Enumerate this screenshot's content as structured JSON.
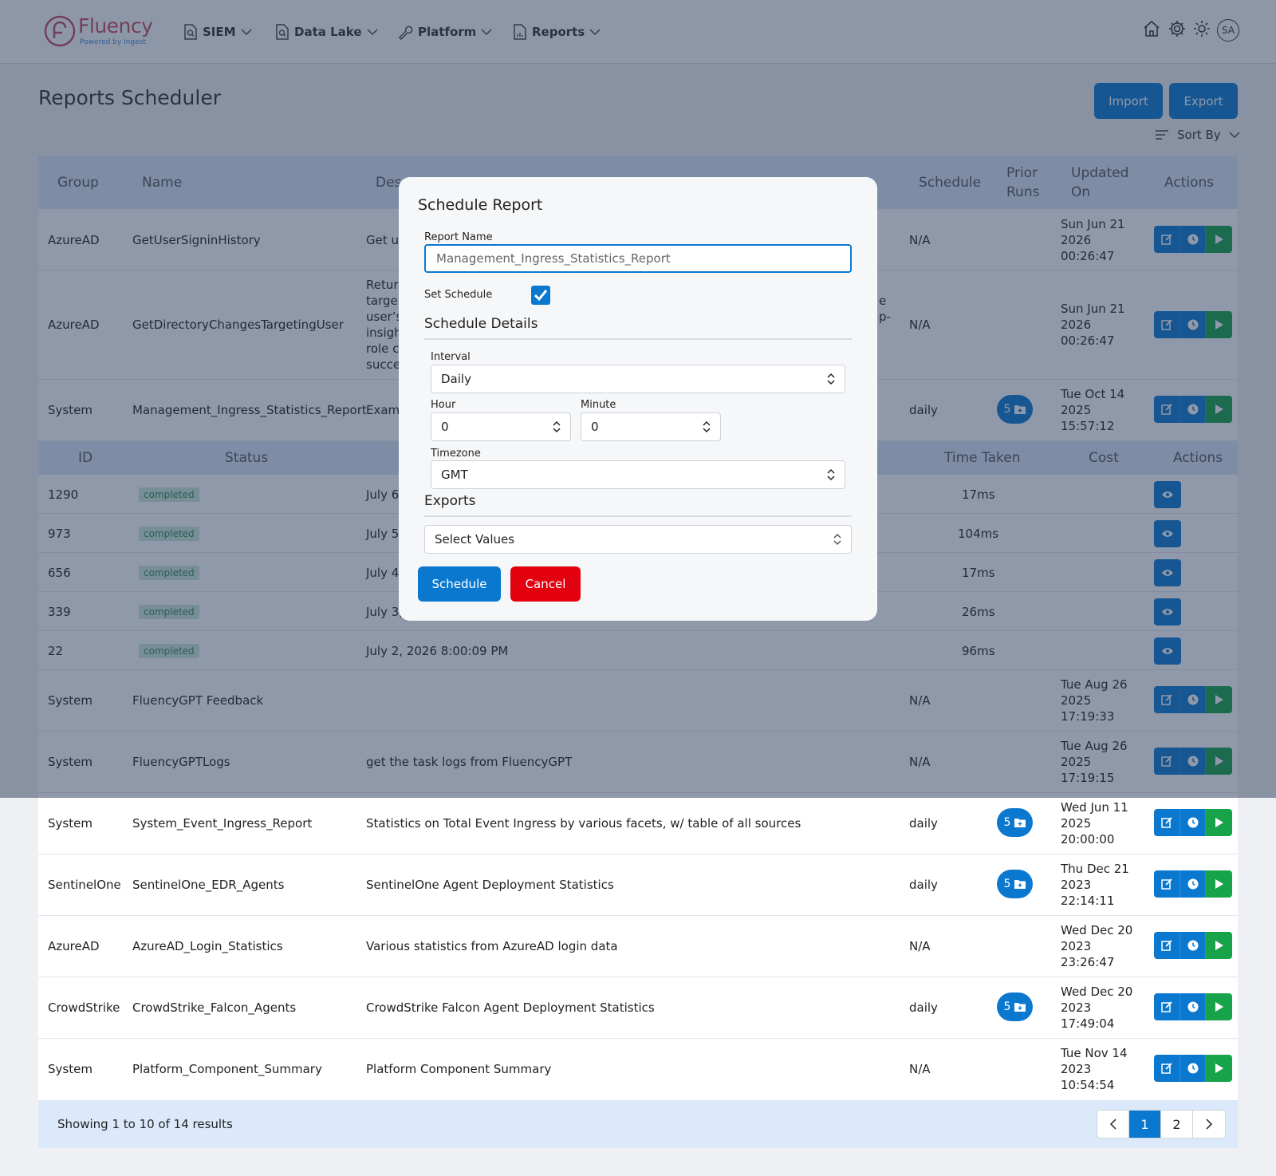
{
  "nav": {
    "logo_text": "Fluency",
    "logo_tagline": "Powered by Ingest",
    "items": [
      {
        "label": "SIEM"
      },
      {
        "label": "Data Lake"
      },
      {
        "label": "Platform"
      },
      {
        "label": "Reports"
      }
    ],
    "avatar_initials": "SA"
  },
  "page": {
    "title": "Reports Scheduler",
    "import_label": "Import",
    "export_label": "Export",
    "sort_label": "Sort By"
  },
  "table": {
    "headers": {
      "group": "Group",
      "name": "Name",
      "description": "Des",
      "schedule": "Schedule",
      "prior_runs_1": "Prior",
      "prior_runs_2": "Runs",
      "updated_1": "Updated",
      "updated_2": "On",
      "actions": "Actions"
    },
    "rows_top": [
      {
        "group": "AzureAD",
        "name": "GetUserSigninHistory",
        "desc": [
          "Get us"
        ],
        "schedule": "N/A",
        "updated": [
          "Sun Jun 21",
          "2026",
          "00:26:47"
        ]
      },
      {
        "group": "AzureAD",
        "name": "GetDirectoryChangesTargetingUser",
        "desc": [
          "Retur",
          "targe",
          "user’s",
          "insigh",
          "role c",
          "succe"
        ],
        "desc_right": [
          "e",
          "",
          "p-"
        ],
        "schedule": "N/A",
        "updated": [
          "Sun Jun 21",
          "2026",
          "00:26:47"
        ]
      },
      {
        "group": "System",
        "name": "Management_Ingress_Statistics_Report",
        "desc": [
          "Exam"
        ],
        "schedule": "daily",
        "runs": "5",
        "updated": [
          "Tue Oct 14",
          "2025",
          "15:57:12"
        ]
      }
    ],
    "sub_headers": {
      "id": "ID",
      "status": "Status",
      "time_taken": "Time Taken",
      "cost": "Cost",
      "actions": "Actions"
    },
    "sub_rows": [
      {
        "id": "1290",
        "status": "completed",
        "date": "July 6",
        "time": "17ms"
      },
      {
        "id": "973",
        "status": "completed",
        "date": "July 5",
        "time": "104ms"
      },
      {
        "id": "656",
        "status": "completed",
        "date": "July 4",
        "time": "17ms"
      },
      {
        "id": "339",
        "status": "completed",
        "date": "July 3,",
        "time": "26ms"
      },
      {
        "id": "22",
        "status": "completed",
        "date": "July 2, 2026 8:00:09 PM",
        "time": "96ms"
      }
    ],
    "rows_bottom": [
      {
        "group": "System",
        "name": "FluencyGPT Feedback",
        "desc": "",
        "schedule": "N/A",
        "updated": [
          "Tue Aug 26",
          "2025",
          "17:19:33"
        ]
      },
      {
        "group": "System",
        "name": "FluencyGPTLogs",
        "desc": "get the task logs from FluencyGPT",
        "schedule": "N/A",
        "updated": [
          "Tue Aug 26",
          "2025",
          "17:19:15"
        ]
      },
      {
        "group": "System",
        "name": "System_Event_Ingress_Report",
        "desc": "Statistics on Total Event Ingress by various facets, w/ table of all sources",
        "schedule": "daily",
        "runs": "5",
        "updated": [
          "Wed Jun 11",
          "2025",
          "20:00:00"
        ]
      },
      {
        "group": "SentinelOne",
        "name": "SentinelOne_EDR_Agents",
        "desc": "SentinelOne Agent Deployment Statistics",
        "schedule": "daily",
        "runs": "5",
        "updated": [
          "Thu Dec 21",
          "2023",
          "22:14:11"
        ]
      },
      {
        "group": "AzureAD",
        "name": "AzureAD_Login_Statistics",
        "desc": "Various statistics from AzureAD login data",
        "schedule": "N/A",
        "updated": [
          "Wed Dec 20",
          "2023",
          "23:26:47"
        ]
      },
      {
        "group": "CrowdStrike",
        "name": "CrowdStrike_Falcon_Agents",
        "desc": "CrowdStrike Falcon Agent Deployment Statistics",
        "schedule": "daily",
        "runs": "5",
        "updated": [
          "Wed Dec 20",
          "2023",
          "17:49:04"
        ]
      },
      {
        "group": "System",
        "name": "Platform_Component_Summary",
        "desc": "Platform Component Summary",
        "schedule": "N/A",
        "updated": [
          "Tue Nov 14",
          "2023",
          "10:54:54"
        ]
      }
    ],
    "footer_text": "Showing 1 to 10 of 14 results",
    "pages": [
      "1",
      "2"
    ],
    "current_page": "1"
  },
  "modal": {
    "title": "Schedule Report",
    "report_name_label": "Report Name",
    "report_name_value": "Management_Ingress_Statistics_Report",
    "set_schedule_label": "Set Schedule",
    "set_schedule_checked": true,
    "schedule_details_label": "Schedule Details",
    "interval_label": "Interval",
    "interval_value": "Daily",
    "hour_label": "Hour",
    "hour_value": "0",
    "minute_label": "Minute",
    "minute_value": "0",
    "timezone_label": "Timezone",
    "timezone_value": "GMT",
    "exports_label": "Exports",
    "exports_placeholder": "Select Values",
    "schedule_button": "Schedule",
    "cancel_button": "Cancel"
  },
  "colors": {
    "primary": "#0b78d0",
    "run_green": "#17a34a",
    "cancel_red": "#e3000f",
    "header_bg": "#dbe7f6",
    "status_completed_bg": "#cfe9d8",
    "overlay": "rgba(34,52,84,0.5)"
  }
}
